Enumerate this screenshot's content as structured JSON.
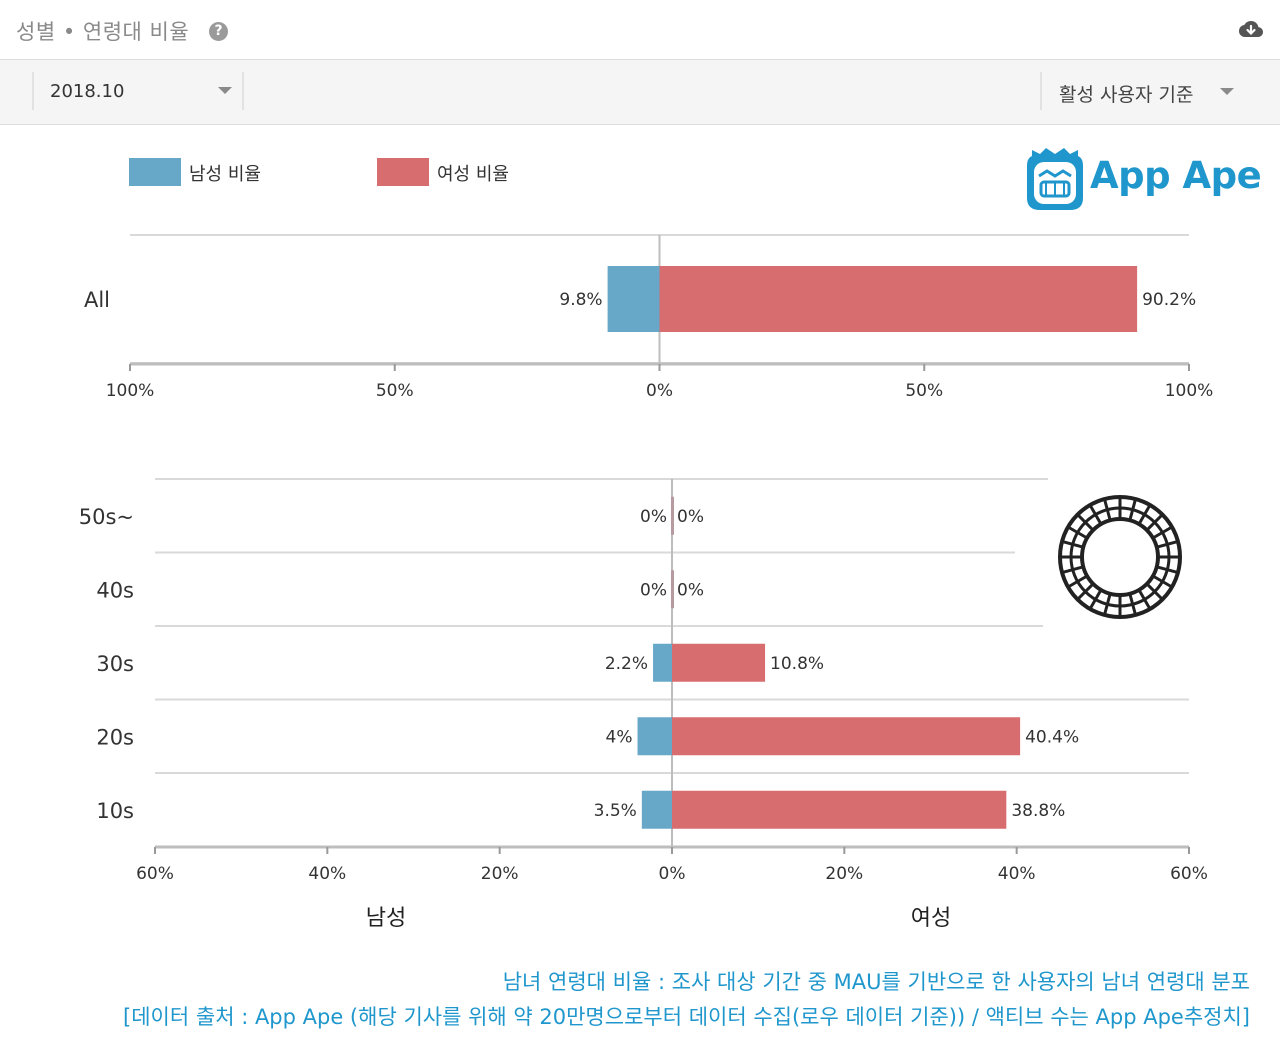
{
  "header": {
    "title": "성별 • 연령대 비율",
    "help_icon": "question-circle-icon",
    "download_icon": "cloud-download-icon"
  },
  "toolbar": {
    "date_value": "2018.10",
    "basis_value": "활성 사용자 기준"
  },
  "legend": {
    "male_label": "남성 비율",
    "female_label": "여성 비율"
  },
  "brand": {
    "name": "App Ape"
  },
  "colors": {
    "male": "#67a8c8",
    "female": "#d76d6f",
    "brand": "#1f97cc"
  },
  "chart_data": [
    {
      "type": "bar",
      "orientation": "horizontal-diverging",
      "categories": [
        "All"
      ],
      "series": [
        {
          "name": "남성 비율",
          "values": [
            9.8
          ],
          "labels": [
            "9.8%"
          ]
        },
        {
          "name": "여성 비율",
          "values": [
            90.2
          ],
          "labels": [
            "90.2%"
          ]
        }
      ],
      "xlim": [
        -100,
        100
      ],
      "xticks": [
        -100,
        -50,
        0,
        50,
        100
      ],
      "xtick_labels": [
        "100%",
        "50%",
        "0%",
        "50%",
        "100%"
      ],
      "grid": true
    },
    {
      "type": "bar",
      "orientation": "horizontal-diverging",
      "categories": [
        "50s~",
        "40s",
        "30s",
        "20s",
        "10s"
      ],
      "series": [
        {
          "name": "남성 비율",
          "values": [
            0,
            0,
            2.2,
            4,
            3.5
          ],
          "labels": [
            "0%",
            "0%",
            "2.2%",
            "4%",
            "3.5%"
          ]
        },
        {
          "name": "여성 비율",
          "values": [
            0,
            0,
            10.8,
            40.4,
            38.8
          ],
          "labels": [
            "0%",
            "0%",
            "10.8%",
            "40.4%",
            "38.8%"
          ]
        }
      ],
      "xlim": [
        -60,
        60
      ],
      "xticks": [
        -60,
        -40,
        -20,
        0,
        20,
        40,
        60
      ],
      "xtick_labels": [
        "60%",
        "40%",
        "20%",
        "0%",
        "20%",
        "40%",
        "60%"
      ],
      "side_labels": {
        "left": "남성",
        "right": "여성"
      },
      "grid": true
    }
  ],
  "footer": {
    "line1": "남녀 연령대 비율 : 조사 대상 기간 중 MAU를 기반으로 한 사용자의 남녀 연령대 분포",
    "line2": "[데이터 출처 : App Ape (해당 기사를 위해 약 20만명으로부터 데이터 수집(로우 데이터 기준)) / 액티브 수는 App Ape추정치]"
  }
}
